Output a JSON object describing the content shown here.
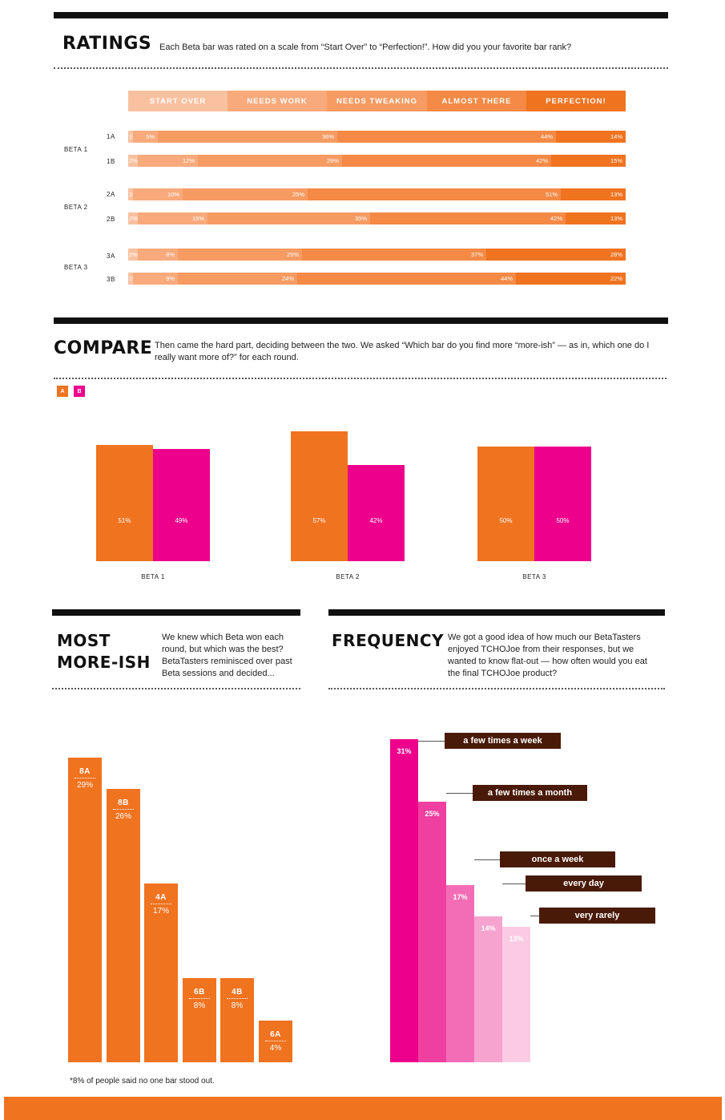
{
  "ratings": {
    "title": "RATINGS",
    "intro": "Each Beta bar was rated on a scale from “Start Over” to “Perfection!”. How did you your favorite bar rank?",
    "scale": [
      {
        "label": "START OVER",
        "color": "#f9c1a0"
      },
      {
        "label": "NEEDS WORK",
        "color": "#f8aa7c"
      },
      {
        "label": "NEEDS TWEAKING",
        "color": "#f69b62"
      },
      {
        "label": "ALMOST THERE",
        "color": "#f48a45"
      },
      {
        "label": "PERFECTION!",
        "color": "#f07320"
      }
    ],
    "groups": [
      {
        "label": "BETA 1",
        "rows": [
          {
            "label": "1A",
            "values": [
              1,
              5,
              36,
              44,
              14
            ],
            "labels": [
              "1%",
              "5%",
              "36%",
              "44%",
              "14%"
            ]
          },
          {
            "label": "1B",
            "values": [
              2,
              12,
              29,
              42,
              15
            ],
            "labels": [
              "2%",
              "12%",
              "29%",
              "42%",
              "15%"
            ]
          }
        ]
      },
      {
        "label": "BETA 2",
        "rows": [
          {
            "label": "2A",
            "values": [
              1,
              10,
              25,
              51,
              13
            ],
            "labels": [
              "1%",
              "10%",
              "25%",
              "51%",
              "13%"
            ]
          },
          {
            "label": "2B",
            "values": [
              2,
              15,
              35,
              42,
              13
            ],
            "labels": [
              "2%",
              "15%",
              "35%",
              "42%",
              "13%"
            ]
          }
        ]
      },
      {
        "label": "BETA 3",
        "rows": [
          {
            "label": "3A",
            "values": [
              2,
              8,
              25,
              37,
              28
            ],
            "labels": [
              "2%",
              "8%",
              "25%",
              "37%",
              "28%"
            ]
          },
          {
            "label": "3B",
            "values": [
              1,
              9,
              24,
              44,
              22
            ],
            "labels": [
              "1%",
              "9%",
              "24%",
              "44%",
              "22%"
            ]
          }
        ]
      }
    ]
  },
  "compare": {
    "title": "COMPARE",
    "intro": "Then came the hard part, deciding between the two. We asked “Which bar do you find more “more-ish” — as in, which one do I really want more of?” for each round.",
    "legend": [
      {
        "label": "A",
        "color": "#f07320"
      },
      {
        "label": "B",
        "color": "#ec008c"
      }
    ],
    "groups": [
      {
        "label": "BETA 1",
        "a": 51,
        "b": 49,
        "a_label": "51%",
        "b_label": "49%"
      },
      {
        "label": "BETA 2",
        "a": 57,
        "b": 42,
        "a_label": "57%",
        "b_label": "42%"
      },
      {
        "label": "BETA 3",
        "a": 50,
        "b": 50,
        "a_label": "50%",
        "b_label": "50%"
      }
    ]
  },
  "most": {
    "title_line1": "MOST",
    "title_line2": "MORE-ISH",
    "intro": "We knew which Beta won each round, but which was the best? BetaTasters reminisced over past Beta sessions and decided...",
    "bars": [
      {
        "name": "8A",
        "value": 29,
        "label": "29%"
      },
      {
        "name": "8B",
        "value": 26,
        "label": "26%"
      },
      {
        "name": "4A",
        "value": 17,
        "label": "17%"
      },
      {
        "name": "6B",
        "value": 8,
        "label": "8%"
      },
      {
        "name": "4B",
        "value": 8,
        "label": "8%"
      },
      {
        "name": "6A",
        "value": 4,
        "label": "4%"
      }
    ],
    "footnote": "*8% of people said no one bar stood out."
  },
  "frequency": {
    "title": "FREQUENCY",
    "intro": "We got a good idea of how much our BetaTasters enjoyed TCHOJoe from their responses, but we wanted to know flat-out — how often would you eat the final TCHOJoe product?",
    "bars": [
      {
        "label": "a few times a week",
        "value": 31,
        "pct": "31%",
        "color": "#ec008c"
      },
      {
        "label": "a few times a month",
        "value": 25,
        "pct": "25%",
        "color": "#ef3fa0"
      },
      {
        "label": "once a week",
        "value": 17,
        "pct": "17%",
        "color": "#f36db6"
      },
      {
        "label": "every day",
        "value": 14,
        "pct": "14%",
        "color": "#f7a3cf"
      },
      {
        "label": "very rarely",
        "value": 13,
        "pct": "13%",
        "color": "#fbcbe3"
      }
    ]
  },
  "chart_data": [
    {
      "type": "bar",
      "title": "RATINGS",
      "stacked": true,
      "categories": [
        "1A",
        "1B",
        "2A",
        "2B",
        "3A",
        "3B"
      ],
      "series": [
        {
          "name": "START OVER",
          "values": [
            1,
            2,
            1,
            2,
            2,
            1
          ]
        },
        {
          "name": "NEEDS WORK",
          "values": [
            5,
            12,
            10,
            15,
            8,
            9
          ]
        },
        {
          "name": "NEEDS TWEAKING",
          "values": [
            36,
            29,
            25,
            35,
            25,
            24
          ]
        },
        {
          "name": "ALMOST THERE",
          "values": [
            44,
            42,
            51,
            42,
            37,
            44
          ]
        },
        {
          "name": "PERFECTION!",
          "values": [
            14,
            15,
            13,
            13,
            28,
            22
          ]
        }
      ]
    },
    {
      "type": "bar",
      "title": "COMPARE",
      "categories": [
        "BETA 1",
        "BETA 2",
        "BETA 3"
      ],
      "series": [
        {
          "name": "A",
          "values": [
            51,
            57,
            50
          ]
        },
        {
          "name": "B",
          "values": [
            49,
            42,
            50
          ]
        }
      ]
    },
    {
      "type": "bar",
      "title": "MOST MORE-ISH",
      "categories": [
        "8A",
        "8B",
        "4A",
        "6B",
        "4B",
        "6A"
      ],
      "values": [
        29,
        26,
        17,
        8,
        8,
        4
      ]
    },
    {
      "type": "bar",
      "title": "FREQUENCY",
      "categories": [
        "a few times a week",
        "a few times a month",
        "once a week",
        "every day",
        "very rarely"
      ],
      "values": [
        31,
        25,
        17,
        14,
        13
      ]
    }
  ]
}
